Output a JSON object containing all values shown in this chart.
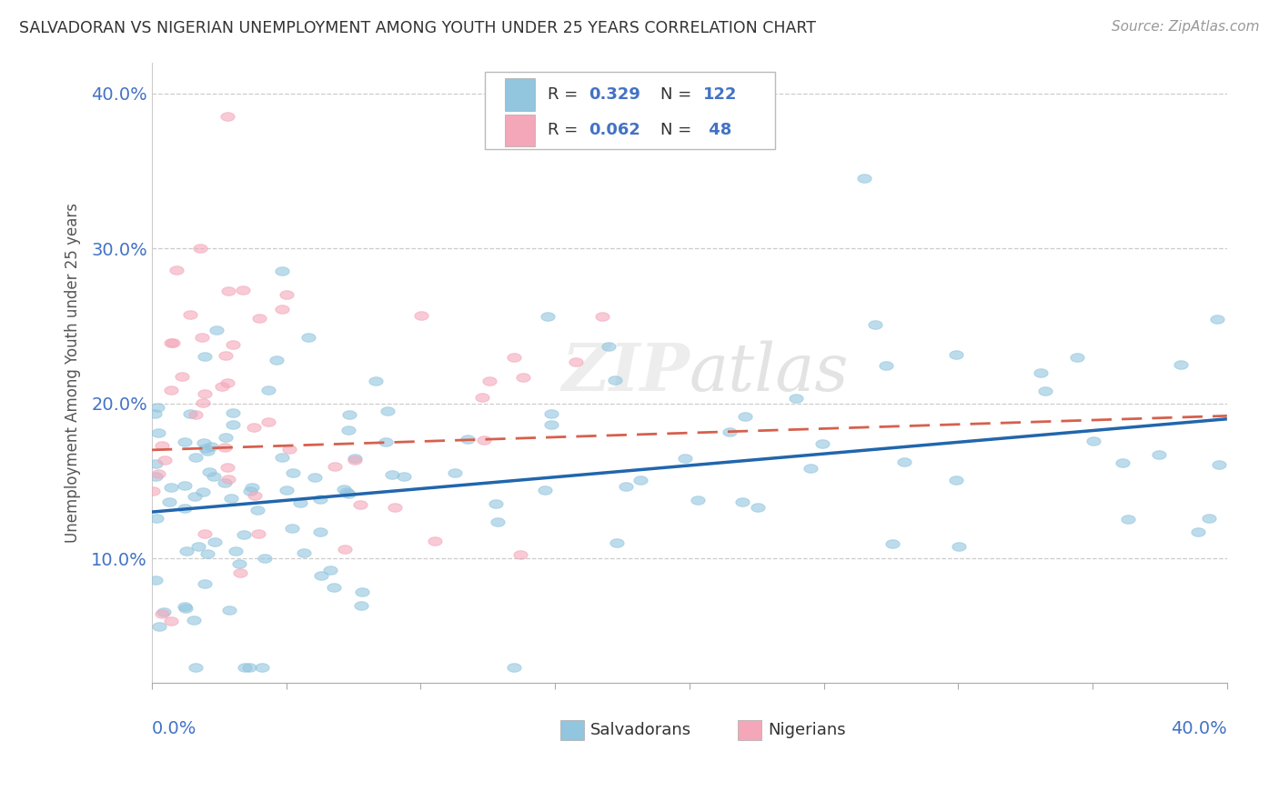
{
  "title": "SALVADORAN VS NIGERIAN UNEMPLOYMENT AMONG YOUTH UNDER 25 YEARS CORRELATION CHART",
  "source": "Source: ZipAtlas.com",
  "ylabel": "Unemployment Among Youth under 25 years",
  "xlim": [
    0.0,
    0.4
  ],
  "ylim": [
    0.02,
    0.42
  ],
  "yticks": [
    0.1,
    0.2,
    0.3,
    0.4
  ],
  "ytick_labels": [
    "10.0%",
    "20.0%",
    "30.0%",
    "40.0%"
  ],
  "watermark": "ZIPatlas",
  "salvadoran_color": "#92c5de",
  "nigerian_color": "#f4a7b9",
  "trendline_salvadoran": "#2166ac",
  "trendline_nigerian": "#d6604d",
  "background_color": "#ffffff",
  "sal_trendline_x0": 0.0,
  "sal_trendline_y0": 0.13,
  "sal_trendline_x1": 0.4,
  "sal_trendline_y1": 0.19,
  "nig_trendline_x0": 0.0,
  "nig_trendline_y0": 0.17,
  "nig_trendline_x1": 0.4,
  "nig_trendline_y1": 0.192
}
